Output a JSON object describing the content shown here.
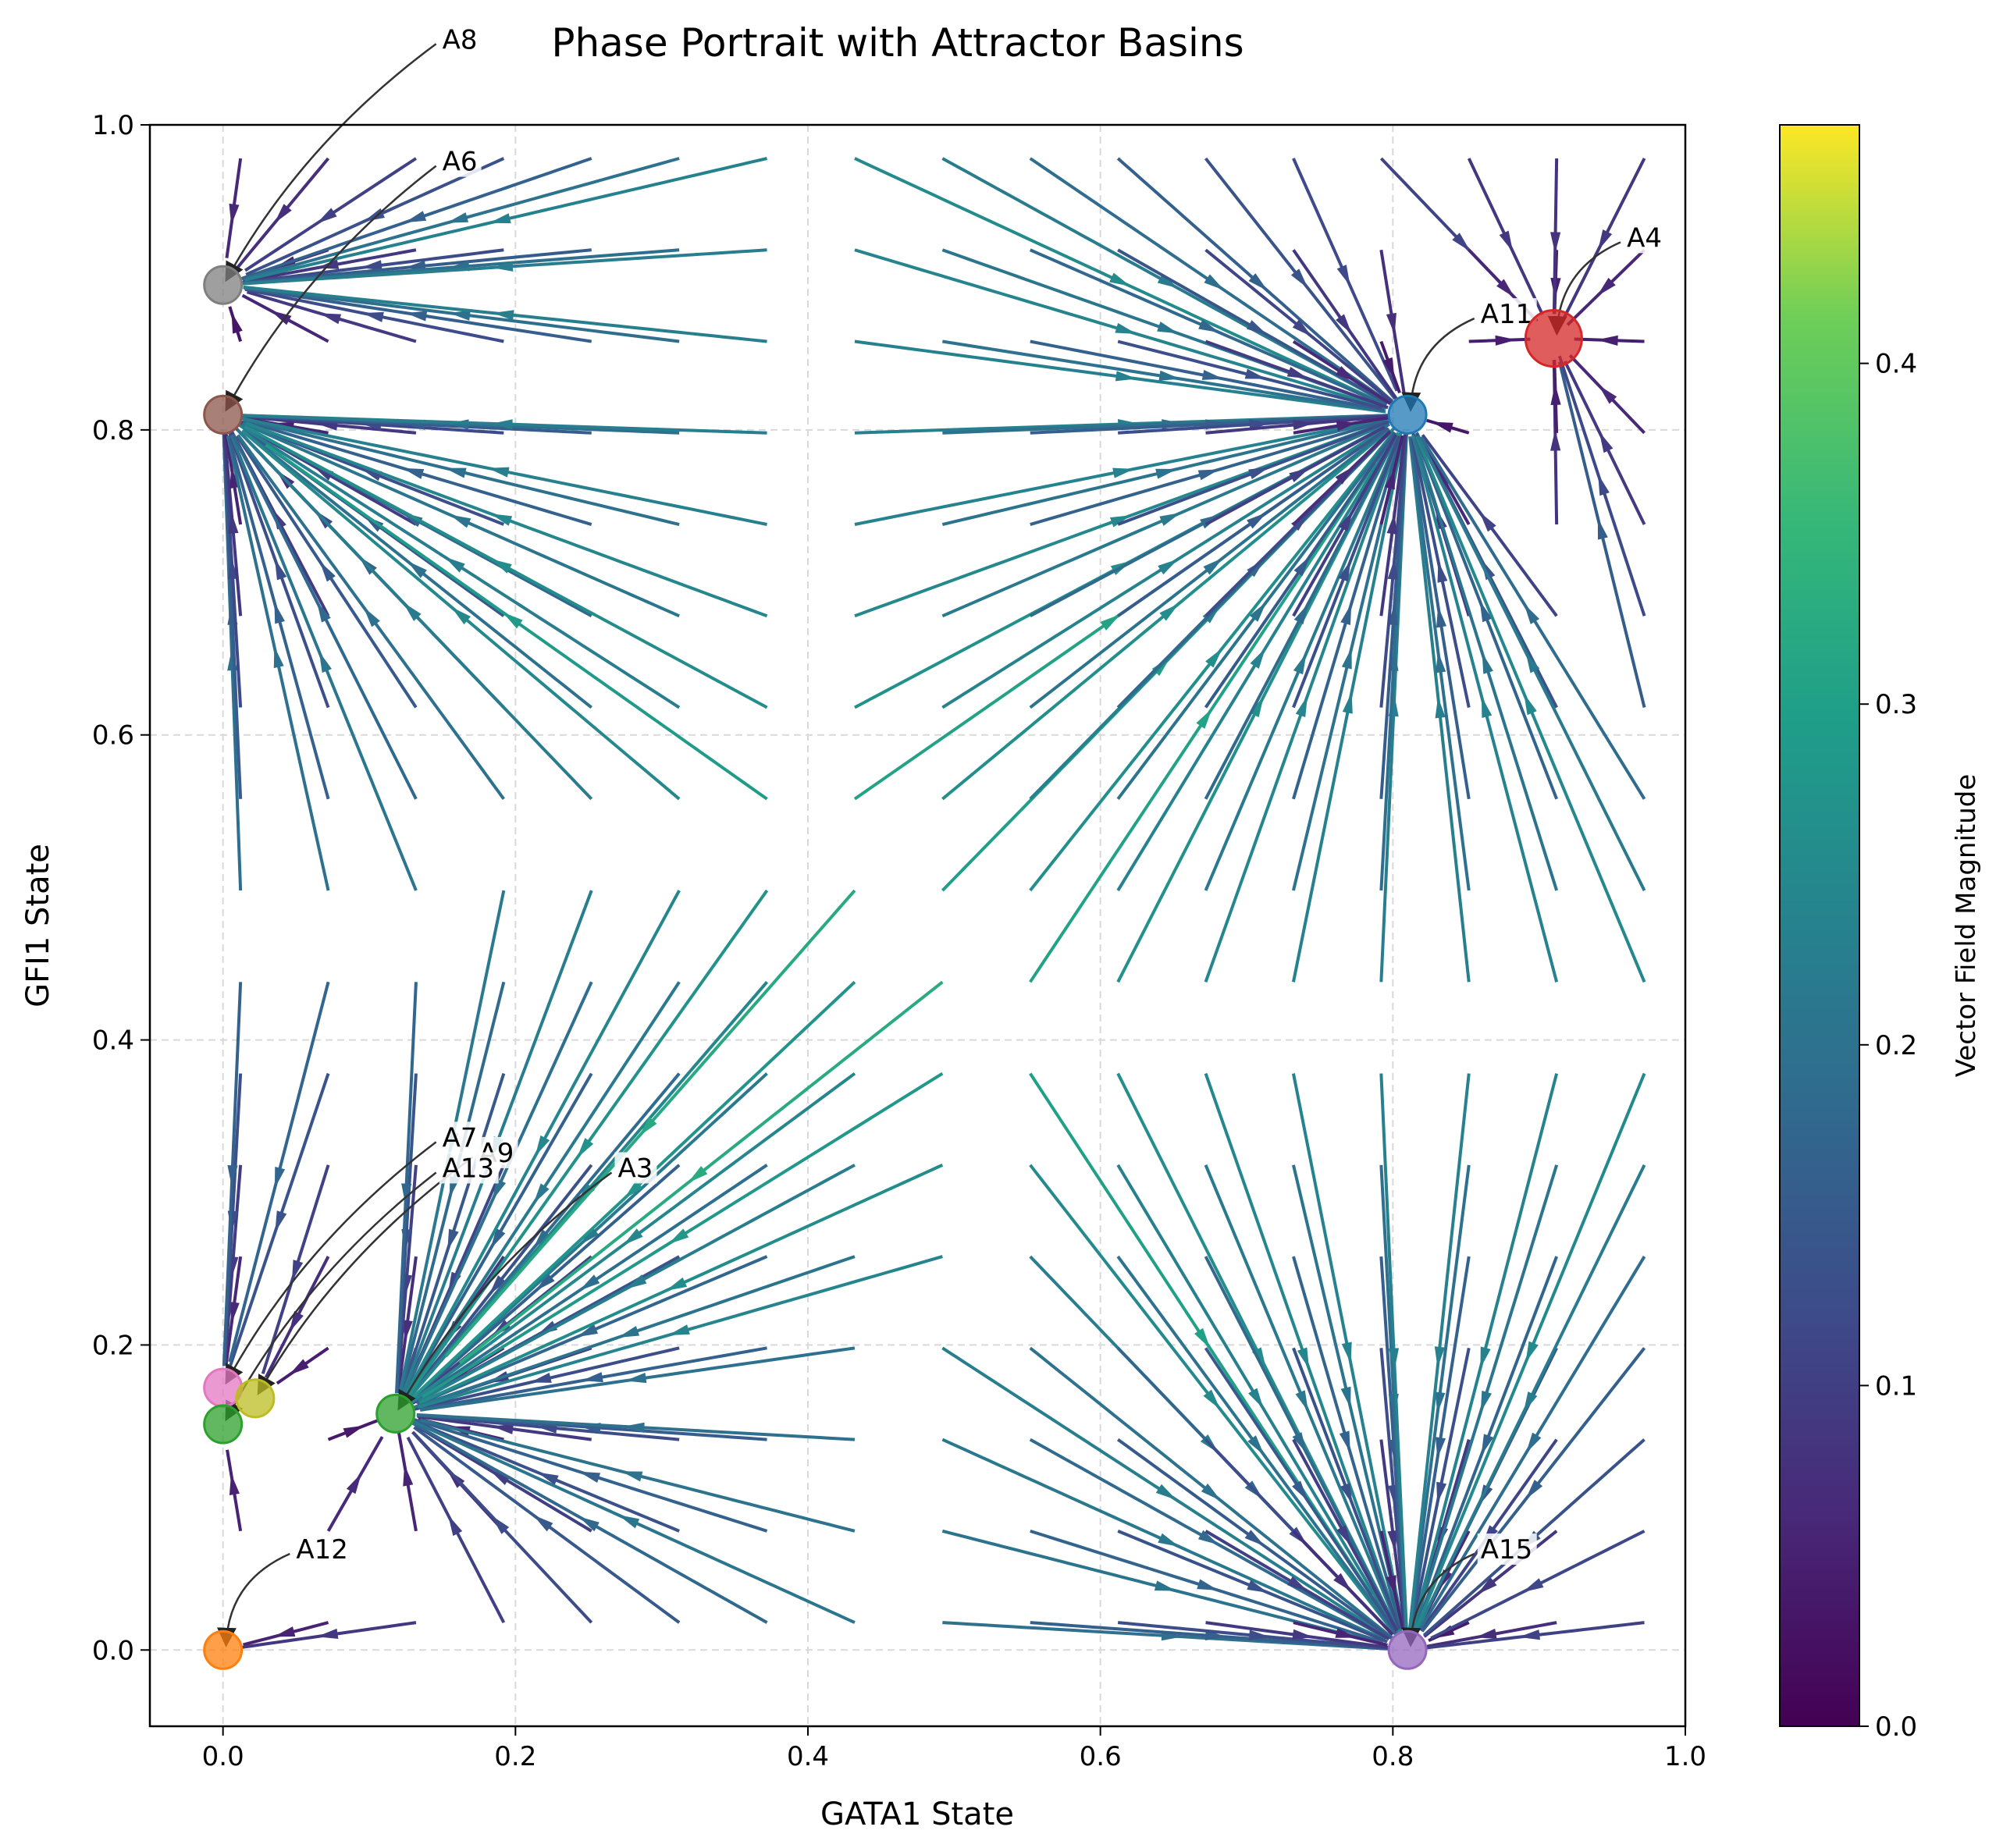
{
  "chart_data": {
    "type": "scatter",
    "title": "Phase Portrait with Attractor Basins",
    "xlabel": "GATA1 State",
    "ylabel": "GFI1 State",
    "xlim": [
      -0.05,
      1.0
    ],
    "ylim": [
      -0.05,
      1.0
    ],
    "xticks": [
      0.0,
      0.2,
      0.4,
      0.6,
      0.8,
      1.0
    ],
    "xtick_labels": [
      "0.0",
      "0.2",
      "0.4",
      "0.6",
      "0.8",
      "1.0"
    ],
    "yticks": [
      0.0,
      0.2,
      0.4,
      0.6,
      0.8,
      1.0
    ],
    "ytick_labels": [
      "0.0",
      "0.2",
      "0.4",
      "0.6",
      "0.8",
      "1.0"
    ],
    "grid": true,
    "colorbar": {
      "label": "Vector Field Magnitude",
      "range": [
        0.0,
        0.47
      ],
      "ticks": [
        0.0,
        0.1,
        0.2,
        0.3,
        0.4
      ],
      "tick_labels": [
        "0.0",
        "0.1",
        "0.2",
        "0.3",
        "0.4"
      ],
      "colormap": "viridis"
    },
    "streamplot": {
      "description_colormap": "viridis",
      "background": "vector field streamlines colored by magnitude"
    },
    "attractors": [
      {
        "name": "A8",
        "x": 0.0,
        "y": 0.895,
        "color": "#7f7f7f",
        "label_pos": [
          0.15,
          1.05
        ]
      },
      {
        "name": "A6",
        "x": 0.0,
        "y": 0.81,
        "color": "#8c564b",
        "label_pos": [
          0.15,
          0.97
        ]
      },
      {
        "name": "A4",
        "x": 0.91,
        "y": 0.86,
        "color": "#d62728",
        "label_pos": [
          0.96,
          0.92
        ]
      },
      {
        "name": "A11",
        "x": 0.81,
        "y": 0.81,
        "color": "#1f77b4",
        "label_pos": [
          0.86,
          0.87
        ]
      },
      {
        "name": "A7",
        "x": 0.0,
        "y": 0.172,
        "color": "#e377c2",
        "label_pos": [
          0.15,
          0.33
        ]
      },
      {
        "name": "A9",
        "x": 0.022,
        "y": 0.165,
        "color": "#bcbd22",
        "label_pos": [
          0.175,
          0.32
        ]
      },
      {
        "name": "A13",
        "x": 0.0,
        "y": 0.148,
        "color": "#2ca02c",
        "label_pos": [
          0.15,
          0.31
        ]
      },
      {
        "name": "A3",
        "x": 0.118,
        "y": 0.155,
        "color": "#2ca02c",
        "label_pos": [
          0.27,
          0.31
        ]
      },
      {
        "name": "A12",
        "x": 0.0,
        "y": 0.0,
        "color": "#ff7f0e",
        "label_pos": [
          0.05,
          0.06
        ]
      },
      {
        "name": "A15",
        "x": 0.81,
        "y": 0.0,
        "color": "#9467bd",
        "label_pos": [
          0.86,
          0.06
        ]
      }
    ]
  }
}
